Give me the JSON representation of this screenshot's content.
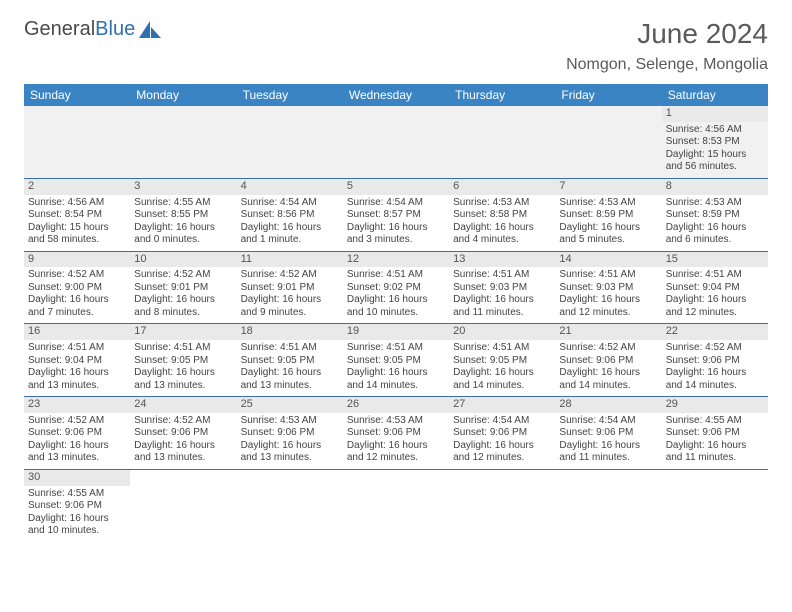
{
  "brand": {
    "word1": "General",
    "word2": "Blue"
  },
  "title": "June 2024",
  "location": "Nomgon, Selenge, Mongolia",
  "day_headers": [
    "Sunday",
    "Monday",
    "Tuesday",
    "Wednesday",
    "Thursday",
    "Friday",
    "Saturday"
  ],
  "colors": {
    "header_bg": "#3b84c4",
    "header_text": "#ffffff",
    "rule": "#3b6fa8",
    "daynum_bg": "#e9e9e9",
    "body_text": "#444444",
    "title_text": "#5a5a5a",
    "brand_grey": "#4a4a4a",
    "brand_blue": "#2f6fb0"
  },
  "weeks": [
    [
      null,
      null,
      null,
      null,
      null,
      null,
      {
        "n": "1",
        "sr": "Sunrise: 4:56 AM",
        "ss": "Sunset: 8:53 PM",
        "d1": "Daylight: 15 hours",
        "d2": "and 56 minutes."
      }
    ],
    [
      {
        "n": "2",
        "sr": "Sunrise: 4:56 AM",
        "ss": "Sunset: 8:54 PM",
        "d1": "Daylight: 15 hours",
        "d2": "and 58 minutes."
      },
      {
        "n": "3",
        "sr": "Sunrise: 4:55 AM",
        "ss": "Sunset: 8:55 PM",
        "d1": "Daylight: 16 hours",
        "d2": "and 0 minutes."
      },
      {
        "n": "4",
        "sr": "Sunrise: 4:54 AM",
        "ss": "Sunset: 8:56 PM",
        "d1": "Daylight: 16 hours",
        "d2": "and 1 minute."
      },
      {
        "n": "5",
        "sr": "Sunrise: 4:54 AM",
        "ss": "Sunset: 8:57 PM",
        "d1": "Daylight: 16 hours",
        "d2": "and 3 minutes."
      },
      {
        "n": "6",
        "sr": "Sunrise: 4:53 AM",
        "ss": "Sunset: 8:58 PM",
        "d1": "Daylight: 16 hours",
        "d2": "and 4 minutes."
      },
      {
        "n": "7",
        "sr": "Sunrise: 4:53 AM",
        "ss": "Sunset: 8:59 PM",
        "d1": "Daylight: 16 hours",
        "d2": "and 5 minutes."
      },
      {
        "n": "8",
        "sr": "Sunrise: 4:53 AM",
        "ss": "Sunset: 8:59 PM",
        "d1": "Daylight: 16 hours",
        "d2": "and 6 minutes."
      }
    ],
    [
      {
        "n": "9",
        "sr": "Sunrise: 4:52 AM",
        "ss": "Sunset: 9:00 PM",
        "d1": "Daylight: 16 hours",
        "d2": "and 7 minutes."
      },
      {
        "n": "10",
        "sr": "Sunrise: 4:52 AM",
        "ss": "Sunset: 9:01 PM",
        "d1": "Daylight: 16 hours",
        "d2": "and 8 minutes."
      },
      {
        "n": "11",
        "sr": "Sunrise: 4:52 AM",
        "ss": "Sunset: 9:01 PM",
        "d1": "Daylight: 16 hours",
        "d2": "and 9 minutes."
      },
      {
        "n": "12",
        "sr": "Sunrise: 4:51 AM",
        "ss": "Sunset: 9:02 PM",
        "d1": "Daylight: 16 hours",
        "d2": "and 10 minutes."
      },
      {
        "n": "13",
        "sr": "Sunrise: 4:51 AM",
        "ss": "Sunset: 9:03 PM",
        "d1": "Daylight: 16 hours",
        "d2": "and 11 minutes."
      },
      {
        "n": "14",
        "sr": "Sunrise: 4:51 AM",
        "ss": "Sunset: 9:03 PM",
        "d1": "Daylight: 16 hours",
        "d2": "and 12 minutes."
      },
      {
        "n": "15",
        "sr": "Sunrise: 4:51 AM",
        "ss": "Sunset: 9:04 PM",
        "d1": "Daylight: 16 hours",
        "d2": "and 12 minutes."
      }
    ],
    [
      {
        "n": "16",
        "sr": "Sunrise: 4:51 AM",
        "ss": "Sunset: 9:04 PM",
        "d1": "Daylight: 16 hours",
        "d2": "and 13 minutes."
      },
      {
        "n": "17",
        "sr": "Sunrise: 4:51 AM",
        "ss": "Sunset: 9:05 PM",
        "d1": "Daylight: 16 hours",
        "d2": "and 13 minutes."
      },
      {
        "n": "18",
        "sr": "Sunrise: 4:51 AM",
        "ss": "Sunset: 9:05 PM",
        "d1": "Daylight: 16 hours",
        "d2": "and 13 minutes."
      },
      {
        "n": "19",
        "sr": "Sunrise: 4:51 AM",
        "ss": "Sunset: 9:05 PM",
        "d1": "Daylight: 16 hours",
        "d2": "and 14 minutes."
      },
      {
        "n": "20",
        "sr": "Sunrise: 4:51 AM",
        "ss": "Sunset: 9:05 PM",
        "d1": "Daylight: 16 hours",
        "d2": "and 14 minutes."
      },
      {
        "n": "21",
        "sr": "Sunrise: 4:52 AM",
        "ss": "Sunset: 9:06 PM",
        "d1": "Daylight: 16 hours",
        "d2": "and 14 minutes."
      },
      {
        "n": "22",
        "sr": "Sunrise: 4:52 AM",
        "ss": "Sunset: 9:06 PM",
        "d1": "Daylight: 16 hours",
        "d2": "and 14 minutes."
      }
    ],
    [
      {
        "n": "23",
        "sr": "Sunrise: 4:52 AM",
        "ss": "Sunset: 9:06 PM",
        "d1": "Daylight: 16 hours",
        "d2": "and 13 minutes."
      },
      {
        "n": "24",
        "sr": "Sunrise: 4:52 AM",
        "ss": "Sunset: 9:06 PM",
        "d1": "Daylight: 16 hours",
        "d2": "and 13 minutes."
      },
      {
        "n": "25",
        "sr": "Sunrise: 4:53 AM",
        "ss": "Sunset: 9:06 PM",
        "d1": "Daylight: 16 hours",
        "d2": "and 13 minutes."
      },
      {
        "n": "26",
        "sr": "Sunrise: 4:53 AM",
        "ss": "Sunset: 9:06 PM",
        "d1": "Daylight: 16 hours",
        "d2": "and 12 minutes."
      },
      {
        "n": "27",
        "sr": "Sunrise: 4:54 AM",
        "ss": "Sunset: 9:06 PM",
        "d1": "Daylight: 16 hours",
        "d2": "and 12 minutes."
      },
      {
        "n": "28",
        "sr": "Sunrise: 4:54 AM",
        "ss": "Sunset: 9:06 PM",
        "d1": "Daylight: 16 hours",
        "d2": "and 11 minutes."
      },
      {
        "n": "29",
        "sr": "Sunrise: 4:55 AM",
        "ss": "Sunset: 9:06 PM",
        "d1": "Daylight: 16 hours",
        "d2": "and 11 minutes."
      }
    ],
    [
      {
        "n": "30",
        "sr": "Sunrise: 4:55 AM",
        "ss": "Sunset: 9:06 PM",
        "d1": "Daylight: 16 hours",
        "d2": "and 10 minutes."
      },
      null,
      null,
      null,
      null,
      null,
      null
    ]
  ]
}
